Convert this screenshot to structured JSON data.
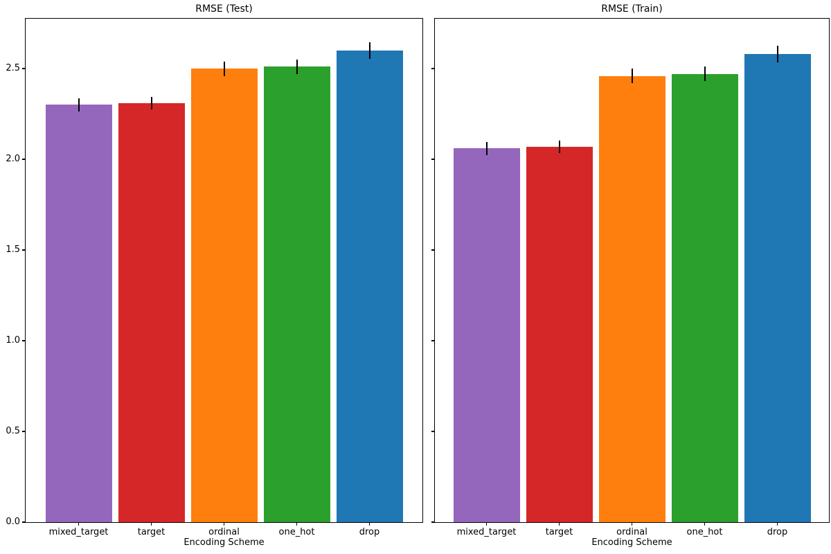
{
  "figure": {
    "background_color": "#ffffff",
    "axis_color": "#000000",
    "error_bar_color": "#000000"
  },
  "chart_data": [
    {
      "type": "bar",
      "title": "RMSE (Test)",
      "xlabel": "Encoding Scheme",
      "ylabel": "",
      "categories": [
        "mixed_target",
        "target",
        "ordinal",
        "one_hot",
        "drop"
      ],
      "values": [
        2.3,
        2.31,
        2.5,
        2.51,
        2.6
      ],
      "errors": [
        0.035,
        0.035,
        0.04,
        0.04,
        0.045
      ],
      "bar_colors": [
        "#9467bd",
        "#d62728",
        "#ff7f0e",
        "#2ca02c",
        "#1f77b4"
      ],
      "ylim": [
        0,
        2.775
      ],
      "yticks": [
        0.0,
        0.5,
        1.0,
        1.5,
        2.0,
        2.5
      ],
      "show_ytick_labels": true,
      "grid": false,
      "legend": null
    },
    {
      "type": "bar",
      "title": "RMSE (Train)",
      "xlabel": "Encoding Scheme",
      "ylabel": "",
      "categories": [
        "mixed_target",
        "target",
        "ordinal",
        "one_hot",
        "drop"
      ],
      "values": [
        2.06,
        2.07,
        2.46,
        2.47,
        2.58
      ],
      "errors": [
        0.035,
        0.035,
        0.04,
        0.04,
        0.045
      ],
      "bar_colors": [
        "#9467bd",
        "#d62728",
        "#ff7f0e",
        "#2ca02c",
        "#1f77b4"
      ],
      "ylim": [
        0,
        2.775
      ],
      "yticks": [
        0.0,
        0.5,
        1.0,
        1.5,
        2.0,
        2.5
      ],
      "show_ytick_labels": false,
      "grid": false,
      "legend": null
    }
  ]
}
